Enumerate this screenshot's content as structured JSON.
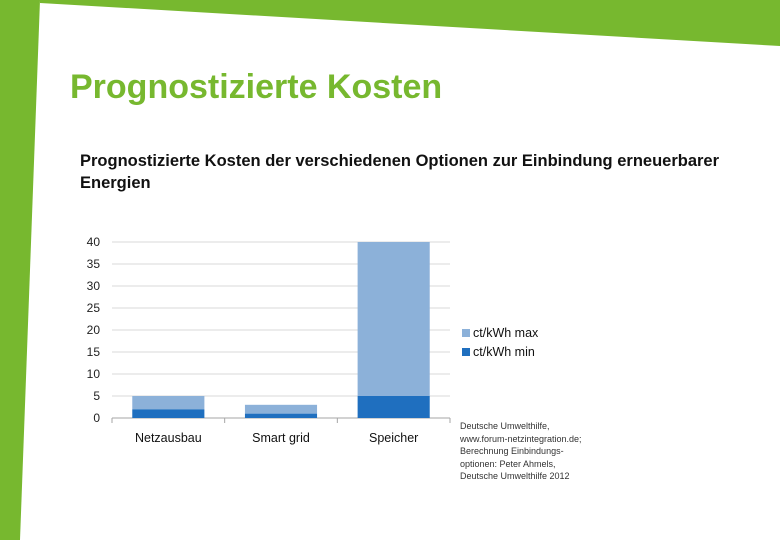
{
  "slide": {
    "title": "Prognostizierte Kosten",
    "subtitle": "Prognostizierte Kosten der verschiedenen Optionen zur Einbindung erneuerbarer Energien",
    "source_lines": [
      "Deutsche Umwelthilfe,",
      "www.forum-netzintegration.de;",
      "Berechnung Einbindungs-",
      "optionen: Peter Ahmels,",
      "Deutsche Umwelthilfe 2012"
    ]
  },
  "colors": {
    "accent": "#77b82f",
    "min": "#1f6fbf",
    "max": "#8cb1d9",
    "grid": "#d9d9d9"
  },
  "chart_data": {
    "type": "bar",
    "stacked": true,
    "title": "",
    "xlabel": "",
    "ylabel": "",
    "ylim": [
      0,
      40
    ],
    "yticks": [
      0,
      5,
      10,
      15,
      20,
      25,
      30,
      35,
      40
    ],
    "grid": true,
    "legend_position": "right",
    "categories": [
      "Netzausbau",
      "Smart grid",
      "Speicher"
    ],
    "series": [
      {
        "name": "ct/kWh min",
        "values": [
          2,
          1,
          5
        ]
      },
      {
        "name": "ct/kWh max",
        "values": [
          3,
          2,
          35
        ]
      }
    ]
  }
}
